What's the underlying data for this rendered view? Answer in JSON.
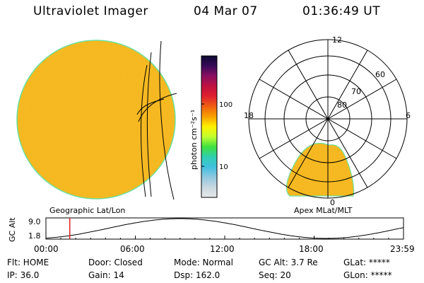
{
  "header": {
    "instrument": "Ultraviolet Imager",
    "date": "04 Mar 07",
    "time": "01:36:49 UT"
  },
  "colorbar": {
    "label": "photon cm⁻²s⁻¹",
    "ticks": [
      "100",
      "10"
    ],
    "colors": [
      "#0a0a30",
      "#3a0a5a",
      "#8a1060",
      "#c01040",
      "#e02030",
      "#f06010",
      "#f8a000",
      "#fff000",
      "#c0ff30",
      "#40e040",
      "#30d0b0",
      "#40c0e0",
      "#90c8e0",
      "#c8d8e0",
      "#e8e8e8"
    ]
  },
  "geo_map": {
    "disk_color": "#f5b820",
    "rim_color": "#6ce0a0"
  },
  "polar_map": {
    "mlt_labels": {
      "top": "12",
      "left": "18",
      "right": "6",
      "bottom": "0"
    },
    "lat_labels": [
      "80",
      "70",
      "60"
    ]
  },
  "strip": {
    "left_label": "Geographic Lat/Lon",
    "right_label": "Apex MLat/MLT",
    "y_axis_label": "GC Alt",
    "y_ticks": [
      "9.0",
      "1.8"
    ],
    "time_ticks": [
      "00:00",
      "06:00",
      "12:00",
      "18:00",
      "23:59"
    ],
    "marker_time_hours": 1.6
  },
  "status": {
    "row1": [
      {
        "label": "Flt: HOME"
      },
      {
        "label": "Door: Closed"
      },
      {
        "label": "Mode: Normal"
      },
      {
        "label": "GC Alt: 3.7 Re"
      },
      {
        "label": "GLat: *****"
      }
    ],
    "row2": [
      {
        "label": "IP: 36.0"
      },
      {
        "label": "Gain: 14"
      },
      {
        "label": "Dsp:  162.0"
      },
      {
        "label": "Seq: 20"
      },
      {
        "label": "GLon: *****"
      }
    ]
  }
}
